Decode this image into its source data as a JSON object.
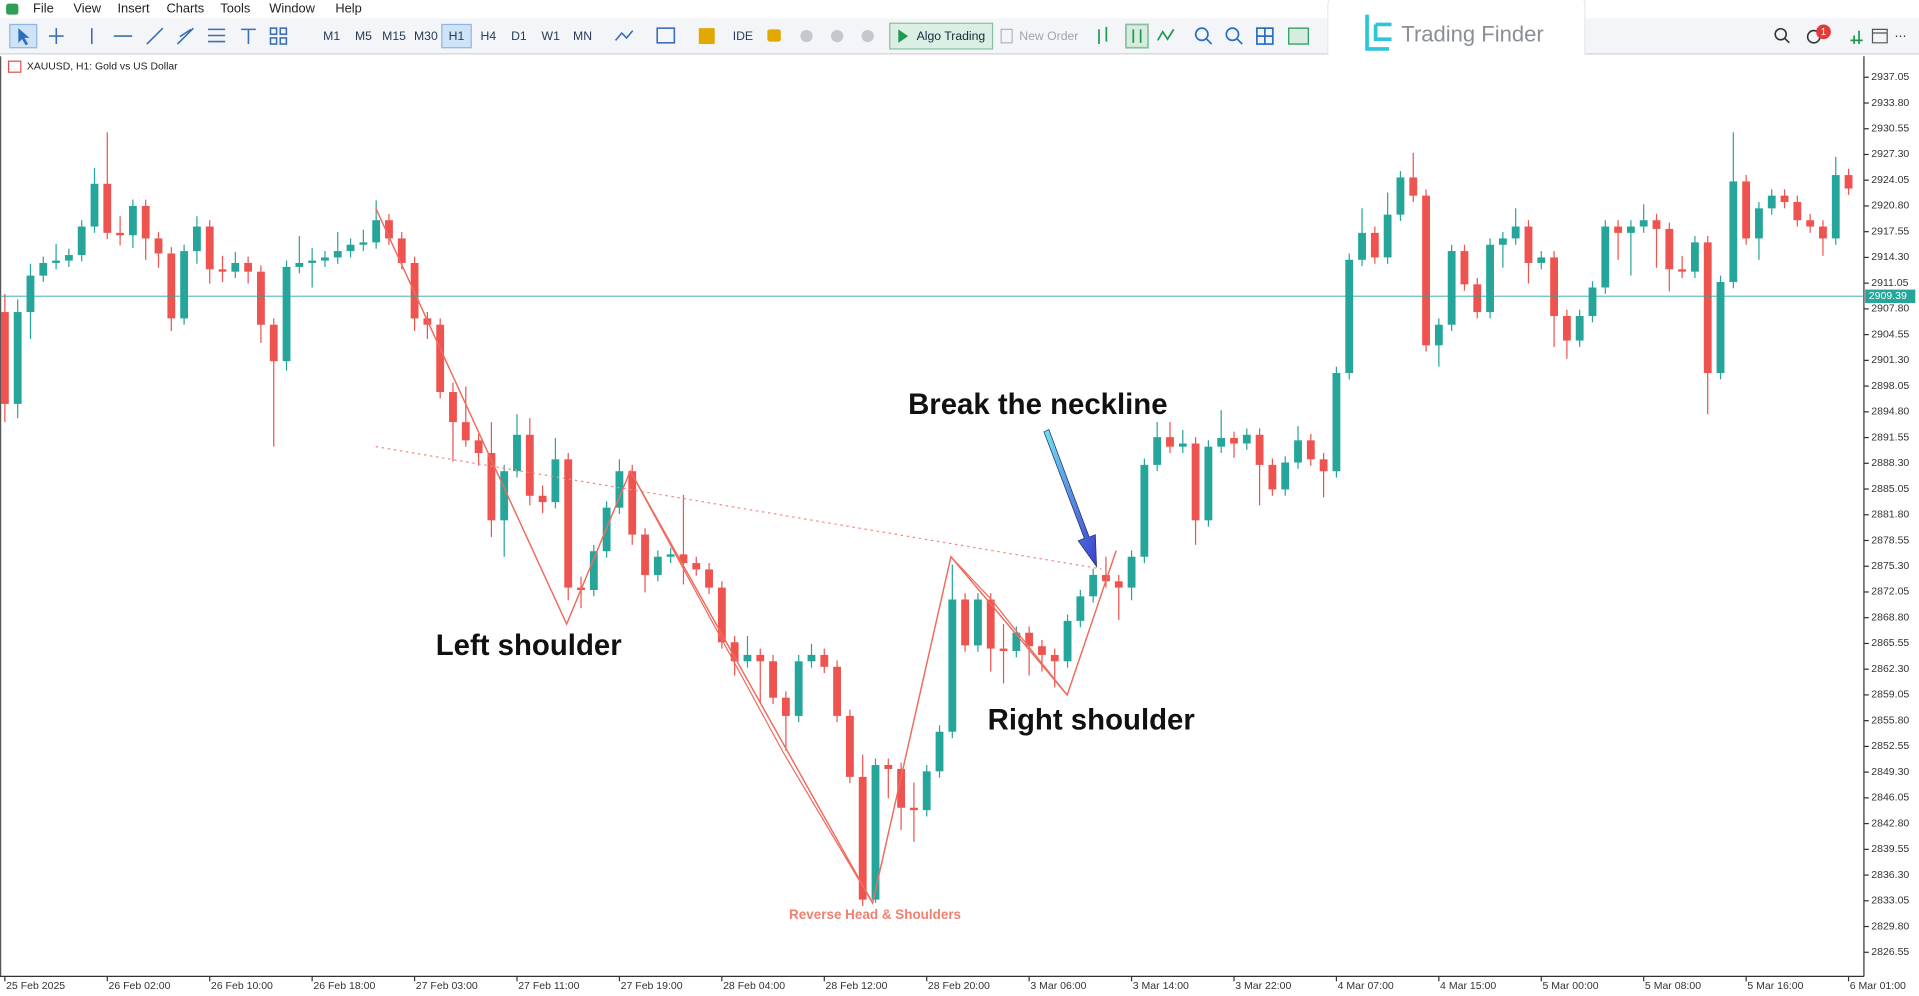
{
  "menu": [
    "File",
    "View",
    "Insert",
    "Charts",
    "Tools",
    "Window",
    "Help"
  ],
  "toolbar": {
    "timeframes": [
      "M1",
      "M5",
      "M15",
      "M30",
      "H1",
      "H4",
      "D1",
      "W1",
      "MN"
    ],
    "ide": "IDE",
    "algo_trading": "Algo Trading",
    "new_order": "New Order",
    "notification_count": 1
  },
  "logo": "Trading Finder",
  "chart_data": {
    "type": "candlestick",
    "symbol_label": "XAUUSD, H1:  Gold vs US Dollar",
    "colors": {
      "up": "#26a69a",
      "down": "#ef5350"
    },
    "ohlc": [
      [
        2907.4,
        2909.7,
        2893.5,
        2895.8
      ],
      [
        2895.8,
        2909.0,
        2894.0,
        2907.4
      ],
      [
        2907.4,
        2913.5,
        2904.0,
        2912.0
      ],
      [
        2912.0,
        2914.4,
        2911.2,
        2913.6
      ],
      [
        2913.6,
        2916.0,
        2912.8,
        2913.9
      ],
      [
        2913.9,
        2915.4,
        2913.1,
        2914.6
      ],
      [
        2914.6,
        2919.0,
        2913.8,
        2918.2
      ],
      [
        2918.2,
        2925.6,
        2917.4,
        2923.6
      ],
      [
        2923.6,
        2930.1,
        2916.6,
        2917.4
      ],
      [
        2917.4,
        2919.5,
        2915.8,
        2917.1
      ],
      [
        2917.1,
        2921.6,
        2915.5,
        2920.8
      ],
      [
        2920.8,
        2921.6,
        2914.0,
        2916.7
      ],
      [
        2916.7,
        2917.5,
        2913.0,
        2914.8
      ],
      [
        2914.8,
        2915.6,
        2905.0,
        2906.6
      ],
      [
        2906.6,
        2915.9,
        2905.8,
        2915.1
      ],
      [
        2915.1,
        2919.5,
        2913.5,
        2918.2
      ],
      [
        2918.2,
        2919.0,
        2911.0,
        2912.8
      ],
      [
        2912.8,
        2914.5,
        2911.2,
        2912.5
      ],
      [
        2912.5,
        2915.0,
        2911.7,
        2913.6
      ],
      [
        2913.6,
        2914.4,
        2911.0,
        2912.5
      ],
      [
        2912.5,
        2913.3,
        2903.5,
        2905.8
      ],
      [
        2905.8,
        2906.6,
        2890.4,
        2901.2
      ],
      [
        2901.2,
        2913.9,
        2900.0,
        2913.1
      ],
      [
        2913.1,
        2917.0,
        2912.3,
        2913.6
      ],
      [
        2913.6,
        2915.5,
        2910.5,
        2913.9
      ],
      [
        2913.9,
        2915.1,
        2913.1,
        2914.3
      ],
      [
        2914.3,
        2917.5,
        2913.5,
        2915.1
      ],
      [
        2915.1,
        2916.7,
        2914.3,
        2915.9
      ],
      [
        2915.9,
        2917.8,
        2915.1,
        2916.2
      ],
      [
        2916.2,
        2921.5,
        2915.4,
        2919.0
      ],
      [
        2919.0,
        2919.8,
        2915.9,
        2916.7
      ],
      [
        2916.7,
        2917.5,
        2912.8,
        2913.6
      ],
      [
        2913.6,
        2914.4,
        2905.0,
        2906.6
      ],
      [
        2906.6,
        2907.4,
        2904.0,
        2905.8
      ],
      [
        2905.8,
        2906.6,
        2896.5,
        2897.3
      ],
      [
        2897.3,
        2898.5,
        2888.5,
        2893.5
      ],
      [
        2893.5,
        2898.0,
        2890.4,
        2891.2
      ],
      [
        2891.2,
        2892.0,
        2888.0,
        2889.6
      ],
      [
        2889.6,
        2893.5,
        2879.0,
        2881.1
      ],
      [
        2881.1,
        2888.1,
        2876.5,
        2887.3
      ],
      [
        2887.3,
        2894.5,
        2886.5,
        2891.9
      ],
      [
        2891.9,
        2894.0,
        2883.0,
        2884.2
      ],
      [
        2884.2,
        2885.5,
        2882.0,
        2883.4
      ],
      [
        2883.4,
        2891.5,
        2882.6,
        2888.8
      ],
      [
        2888.8,
        2889.6,
        2871.0,
        2872.6
      ],
      [
        2872.6,
        2874.0,
        2870.0,
        2872.3
      ],
      [
        2872.3,
        2878.0,
        2871.5,
        2877.2
      ],
      [
        2877.2,
        2883.5,
        2876.4,
        2882.7
      ],
      [
        2882.7,
        2888.8,
        2881.9,
        2887.3
      ],
      [
        2887.3,
        2888.1,
        2878.0,
        2879.3
      ],
      [
        2879.3,
        2880.1,
        2872.0,
        2874.2
      ],
      [
        2874.2,
        2877.3,
        2873.4,
        2876.5
      ],
      [
        2876.5,
        2877.6,
        2875.7,
        2876.8
      ],
      [
        2876.8,
        2884.3,
        2873.0,
        2875.7
      ],
      [
        2875.7,
        2876.5,
        2874.1,
        2874.9
      ],
      [
        2874.9,
        2875.7,
        2871.8,
        2872.6
      ],
      [
        2872.6,
        2873.4,
        2864.9,
        2865.7
      ],
      [
        2865.7,
        2866.5,
        2861.5,
        2863.3
      ],
      [
        2863.3,
        2866.5,
        2862.5,
        2864.1
      ],
      [
        2864.1,
        2864.9,
        2858.0,
        2863.3
      ],
      [
        2863.3,
        2864.1,
        2857.9,
        2858.7
      ],
      [
        2858.7,
        2859.5,
        2852.0,
        2856.4
      ],
      [
        2856.4,
        2864.1,
        2855.6,
        2863.3
      ],
      [
        2863.3,
        2865.5,
        2862.5,
        2864.1
      ],
      [
        2864.1,
        2864.9,
        2861.8,
        2862.6
      ],
      [
        2862.6,
        2863.4,
        2855.6,
        2856.4
      ],
      [
        2856.4,
        2857.2,
        2847.9,
        2848.7
      ],
      [
        2848.7,
        2851.5,
        2832.4,
        2833.2
      ],
      [
        2833.2,
        2851.0,
        2832.8,
        2850.2
      ],
      [
        2850.2,
        2851.0,
        2846.0,
        2849.7
      ],
      [
        2849.7,
        2850.5,
        2842.0,
        2844.8
      ],
      [
        2844.8,
        2848.0,
        2840.5,
        2844.5
      ],
      [
        2844.5,
        2850.2,
        2843.7,
        2849.4
      ],
      [
        2849.4,
        2855.2,
        2848.6,
        2854.4
      ],
      [
        2854.4,
        2875.5,
        2853.6,
        2871.1
      ],
      [
        2871.1,
        2871.9,
        2864.5,
        2865.3
      ],
      [
        2865.3,
        2871.9,
        2864.5,
        2871.1
      ],
      [
        2871.1,
        2871.9,
        2862.0,
        2864.9
      ],
      [
        2864.9,
        2868.0,
        2860.5,
        2864.6
      ],
      [
        2864.6,
        2867.7,
        2863.8,
        2866.9
      ],
      [
        2866.9,
        2867.7,
        2861.5,
        2865.2
      ],
      [
        2865.2,
        2866.0,
        2862.0,
        2864.1
      ],
      [
        2864.1,
        2864.9,
        2860.0,
        2863.3
      ],
      [
        2863.3,
        2869.2,
        2862.5,
        2868.4
      ],
      [
        2868.4,
        2872.3,
        2867.6,
        2871.5
      ],
      [
        2871.5,
        2875.0,
        2870.7,
        2874.2
      ],
      [
        2874.2,
        2876.5,
        2872.6,
        2873.4
      ],
      [
        2873.4,
        2874.2,
        2868.5,
        2872.6
      ],
      [
        2872.6,
        2877.3,
        2871.0,
        2876.5
      ],
      [
        2876.5,
        2888.9,
        2875.7,
        2888.1
      ],
      [
        2888.1,
        2893.5,
        2887.3,
        2891.6
      ],
      [
        2891.6,
        2893.5,
        2889.6,
        2890.4
      ],
      [
        2890.4,
        2892.5,
        2889.6,
        2890.8
      ],
      [
        2890.8,
        2891.6,
        2878.0,
        2881.1
      ],
      [
        2881.1,
        2891.2,
        2880.3,
        2890.4
      ],
      [
        2890.4,
        2895.0,
        2889.6,
        2891.5
      ],
      [
        2891.5,
        2892.3,
        2889.0,
        2890.8
      ],
      [
        2890.8,
        2892.7,
        2890.0,
        2891.9
      ],
      [
        2891.9,
        2892.7,
        2883.0,
        2888.1
      ],
      [
        2888.1,
        2888.9,
        2884.2,
        2885.0
      ],
      [
        2885.0,
        2889.2,
        2884.2,
        2888.4
      ],
      [
        2888.4,
        2893.0,
        2887.6,
        2891.2
      ],
      [
        2891.2,
        2892.0,
        2888.0,
        2888.8
      ],
      [
        2888.8,
        2889.6,
        2884.0,
        2887.3
      ],
      [
        2887.3,
        2900.5,
        2886.5,
        2899.7
      ],
      [
        2899.7,
        2914.8,
        2898.9,
        2914.0
      ],
      [
        2914.0,
        2920.5,
        2913.2,
        2917.4
      ],
      [
        2917.4,
        2918.2,
        2913.5,
        2914.3
      ],
      [
        2914.3,
        2922.5,
        2913.5,
        2919.7
      ],
      [
        2919.7,
        2925.2,
        2918.9,
        2924.4
      ],
      [
        2924.4,
        2927.5,
        2921.3,
        2922.1
      ],
      [
        2922.1,
        2922.9,
        2902.4,
        2903.2
      ],
      [
        2903.2,
        2906.6,
        2900.5,
        2905.8
      ],
      [
        2905.8,
        2915.9,
        2905.0,
        2915.1
      ],
      [
        2915.1,
        2915.9,
        2910.1,
        2910.9
      ],
      [
        2910.9,
        2911.7,
        2906.6,
        2907.4
      ],
      [
        2907.4,
        2916.7,
        2906.6,
        2915.9
      ],
      [
        2915.9,
        2917.5,
        2913.0,
        2916.7
      ],
      [
        2916.7,
        2920.5,
        2915.9,
        2918.2
      ],
      [
        2918.2,
        2919.0,
        2911.0,
        2913.6
      ],
      [
        2913.6,
        2915.1,
        2912.8,
        2914.3
      ],
      [
        2914.3,
        2915.1,
        2903.0,
        2906.9
      ],
      [
        2906.9,
        2907.7,
        2901.5,
        2903.8
      ],
      [
        2903.8,
        2907.7,
        2903.0,
        2906.9
      ],
      [
        2906.9,
        2911.3,
        2906.1,
        2910.5
      ],
      [
        2910.5,
        2919.0,
        2909.7,
        2918.2
      ],
      [
        2918.2,
        2919.0,
        2914.0,
        2917.4
      ],
      [
        2917.4,
        2919.0,
        2912.0,
        2918.2
      ],
      [
        2918.2,
        2921.0,
        2917.4,
        2919.0
      ],
      [
        2919.0,
        2919.8,
        2913.0,
        2917.9
      ],
      [
        2917.9,
        2918.7,
        2910.0,
        2912.8
      ],
      [
        2912.8,
        2914.5,
        2911.7,
        2912.5
      ],
      [
        2912.5,
        2917.0,
        2911.7,
        2916.2
      ],
      [
        2916.2,
        2917.0,
        2894.5,
        2899.7
      ],
      [
        2899.7,
        2912.0,
        2898.9,
        2911.2
      ],
      [
        2911.2,
        2930.1,
        2910.4,
        2923.9
      ],
      [
        2923.9,
        2924.7,
        2915.9,
        2916.7
      ],
      [
        2916.7,
        2921.3,
        2914.0,
        2920.5
      ],
      [
        2920.5,
        2922.9,
        2919.7,
        2922.1
      ],
      [
        2922.1,
        2922.9,
        2920.5,
        2921.3
      ],
      [
        2921.3,
        2922.1,
        2918.2,
        2919.0
      ],
      [
        2919.0,
        2919.8,
        2917.4,
        2918.2
      ],
      [
        2918.2,
        2919.0,
        2914.5,
        2916.7
      ],
      [
        2916.7,
        2927.0,
        2915.9,
        2924.7
      ],
      [
        2924.7,
        2925.5,
        2922.2,
        2923.0
      ]
    ],
    "xlim": [
      -0.38,
      145.2
    ],
    "xticks": [
      {
        "value": 0,
        "label": "25 Feb 2025"
      },
      {
        "value": 8,
        "label": "26 Feb 02:00"
      },
      {
        "value": 16,
        "label": "26 Feb 10:00"
      },
      {
        "value": 24,
        "label": "26 Feb 18:00"
      },
      {
        "value": 32,
        "label": "27 Feb 03:00"
      },
      {
        "value": 40,
        "label": "27 Feb 11:00"
      },
      {
        "value": 48,
        "label": "27 Feb 19:00"
      },
      {
        "value": 56,
        "label": "28 Feb 04:00"
      },
      {
        "value": 64,
        "label": "28 Feb 12:00"
      },
      {
        "value": 72,
        "label": "28 Feb 20:00"
      },
      {
        "value": 80,
        "label": "3 Mar 06:00"
      },
      {
        "value": 88,
        "label": "3 Mar 14:00"
      },
      {
        "value": 96,
        "label": "3 Mar 22:00"
      },
      {
        "value": 104,
        "label": "4 Mar 07:00"
      },
      {
        "value": 112,
        "label": "4 Mar 15:00"
      },
      {
        "value": 120,
        "label": "5 Mar 00:00"
      },
      {
        "value": 128,
        "label": "5 Mar 08:00"
      },
      {
        "value": 136,
        "label": "5 Mar 16:00"
      },
      {
        "value": 144,
        "label": "6 Mar 01:00"
      }
    ],
    "ylim": [
      2823.5,
      2939.7
    ],
    "yticks": [
      2937.05,
      {
        "value": 2933.8,
        "label": "2933.80"
      },
      2930.55,
      {
        "value": 2927.3,
        "label": "2927.30"
      },
      2924.05,
      {
        "value": 2920.8,
        "label": "2920.80"
      },
      2917.55,
      {
        "value": 2914.3,
        "label": "2914.30"
      },
      2911.05,
      {
        "value": 2907.8,
        "label": "2907.80"
      },
      2904.55,
      {
        "value": 2901.3,
        "label": "2901.30"
      },
      2898.05,
      {
        "value": 2894.8,
        "label": "2894.80"
      },
      2891.55,
      {
        "value": 2888.3,
        "label": "2888.30"
      },
      2885.05,
      {
        "value": 2881.8,
        "label": "2881.80"
      },
      2878.55,
      {
        "value": 2875.3,
        "label": "2875.30"
      },
      2872.05,
      {
        "value": 2868.8,
        "label": "2868.80"
      },
      2865.55,
      {
        "value": 2862.3,
        "label": "2862.30"
      },
      2859.05,
      {
        "value": 2855.8,
        "label": "2855.80"
      },
      2852.55,
      {
        "value": 2849.3,
        "label": "2849.30"
      },
      2846.05,
      {
        "value": 2842.8,
        "label": "2842.80"
      },
      2839.55,
      {
        "value": 2836.3,
        "label": "2836.30"
      },
      2833.05,
      {
        "value": 2829.8,
        "label": "2829.80"
      },
      2826.55
    ],
    "price_line": {
      "value": 2909.39,
      "color": "#26a69a"
    },
    "annotations": [
      "Break the neckline",
      "Left shoulder",
      "Right shoulder",
      "Reverse Head & Shoulders"
    ]
  }
}
